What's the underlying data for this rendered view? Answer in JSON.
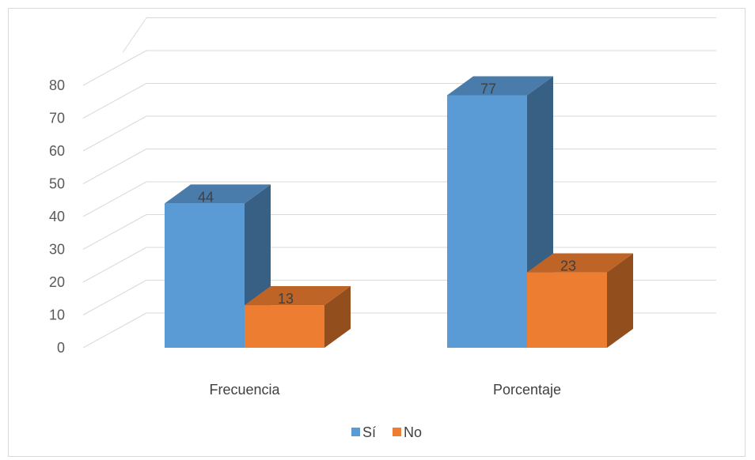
{
  "chart_data": {
    "type": "bar",
    "style": "3d-clustered-column",
    "categories": [
      "Frecuencia",
      "Porcentaje"
    ],
    "series": [
      {
        "name": "Sí",
        "values": [
          44,
          77
        ],
        "color": "#5b9bd5"
      },
      {
        "name": "No",
        "values": [
          13,
          23
        ],
        "color": "#ed7d31"
      }
    ],
    "ylim": [
      0,
      80
    ],
    "yticks": [
      "0",
      "10",
      "20",
      "30",
      "40",
      "50",
      "60",
      "70",
      "80"
    ],
    "grid": true,
    "legend": "bottom"
  }
}
